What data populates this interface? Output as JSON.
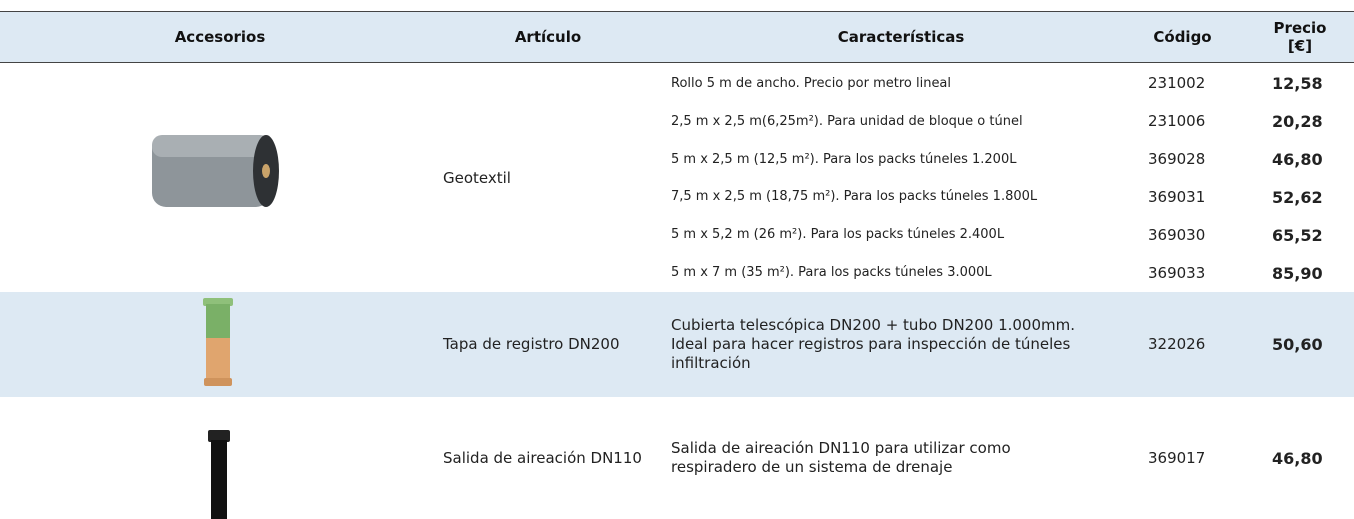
{
  "table": {
    "headers": [
      "Accesorios",
      "Artículo",
      "Características",
      "Código",
      "Precio [€]"
    ],
    "rows": [
      {
        "article": "Geotextil",
        "items": [
          {
            "description": "Rollo 5 m de ancho. Precio por  metro lineal",
            "code": "231002",
            "price": "12,58"
          },
          {
            "description": "2,5 m x 2,5 m(6,25m²). Para unidad de bloque o túnel",
            "code": "231006",
            "price": "20,28"
          },
          {
            "description": "5 m x 2,5 m (12,5 m²). Para los packs túneles 1.200L",
            "code": "369028",
            "price": "46,80"
          },
          {
            "description": "7,5 m x 2,5 m (18,75 m²). Para los packs túneles 1.800L",
            "code": "369031",
            "price": "52,62"
          },
          {
            "description": "5 m x 5,2 m (26 m²). Para los packs túneles 2.400L",
            "code": "369030",
            "price": "65,52"
          },
          {
            "description": "5 m x 7 m (35 m²). Para los packs túneles 3.000L",
            "code": "369033",
            "price": "85,90"
          }
        ]
      },
      {
        "article": "Tapa de registro DN200",
        "items": [
          {
            "description": "Cubierta telescópica DN200 + tubo DN200 1.000mm. Ideal para hacer registros para inspección de túneles infiltración",
            "code": "322026",
            "price": "50,60"
          }
        ]
      },
      {
        "article": "Salida de aireación DN110",
        "items": [
          {
            "description": "Salida de aireación DN110 para utilizar como respiradero de un sistema de drenaje",
            "code": "369017",
            "price": "46,80"
          }
        ]
      }
    ]
  }
}
